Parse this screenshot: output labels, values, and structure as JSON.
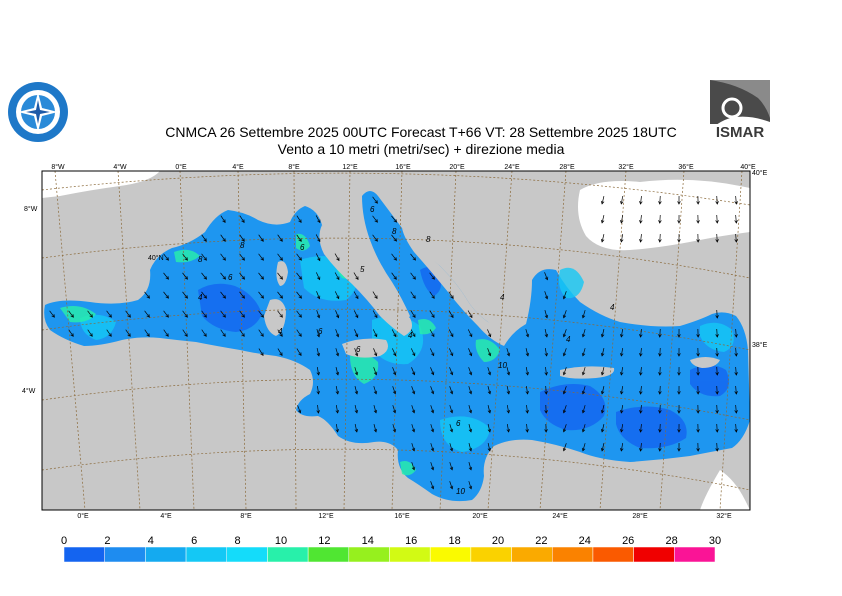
{
  "header": {
    "title_line1": "CNMCA 26 Settembre 2025 00UTC Forecast T+66 VT: 28 Settembre 2025 18UTC",
    "title_line2": "Vento a 10 metri (metri/sec) + direzione media"
  },
  "logos": {
    "left_icon": "meteo-service-emblem-icon",
    "right_text": "ISMAR",
    "right_icon": "ismar-logo-icon"
  },
  "map": {
    "top_ticks": [
      "8°W",
      "4°W",
      "0°E",
      "4°E",
      "8°E",
      "12°E",
      "16°E",
      "20°E",
      "24°E",
      "28°E",
      "32°E",
      "36°E",
      "40°E"
    ],
    "bottom_ticks": [
      "0°E",
      "4°E",
      "8°E",
      "12°E",
      "16°E",
      "20°E",
      "24°E",
      "28°E",
      "32°E"
    ],
    "left_ticks": [
      "8°W",
      "40°N",
      "4°W"
    ],
    "right_ticks": [
      "40°E",
      "38°E"
    ],
    "contour_labels": [
      "8",
      "6",
      "4",
      "4",
      "6",
      "6",
      "5",
      "6",
      "8",
      "8",
      "6",
      "4",
      "4",
      "10",
      "10",
      "8",
      "6",
      "4",
      "4"
    ],
    "colors": {
      "land": "#c8c8c8",
      "grid": "#8b6a3a",
      "sea_base": "#1e96f0"
    }
  },
  "colorbar": {
    "ticks": [
      "0",
      "2",
      "4",
      "6",
      "8",
      "10",
      "12",
      "14",
      "16",
      "18",
      "20",
      "22",
      "24",
      "26",
      "28",
      "30"
    ],
    "colors": [
      "#1464f0",
      "#1e8cf0",
      "#14aaf0",
      "#14c8f5",
      "#14dcfa",
      "#28f0aa",
      "#50e632",
      "#96f01e",
      "#d2fa14",
      "#fafa00",
      "#fad200",
      "#faaa00",
      "#fa8200",
      "#fa5a00",
      "#f00000",
      "#fa1496"
    ]
  }
}
